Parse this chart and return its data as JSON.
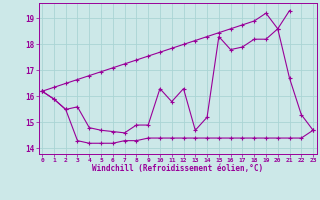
{
  "x": [
    0,
    1,
    2,
    3,
    4,
    5,
    6,
    7,
    8,
    9,
    10,
    11,
    12,
    13,
    14,
    15,
    16,
    17,
    18,
    19,
    20,
    21,
    22,
    23
  ],
  "line_diagonal": [
    16.2,
    16.35,
    16.5,
    16.65,
    16.8,
    16.95,
    17.1,
    17.25,
    17.4,
    17.55,
    17.7,
    17.85,
    18.0,
    18.15,
    18.3,
    18.45,
    18.6,
    18.75,
    18.9,
    19.2,
    18.6,
    16.7,
    15.3,
    14.7
  ],
  "line_wavy": [
    16.2,
    15.9,
    15.5,
    15.6,
    14.8,
    14.7,
    14.65,
    14.6,
    14.9,
    14.9,
    16.3,
    15.8,
    16.3,
    14.7,
    15.2,
    18.3,
    17.8,
    17.9,
    18.2,
    18.2,
    18.6,
    19.3,
    null,
    null
  ],
  "line_flat": [
    16.2,
    15.9,
    15.5,
    14.3,
    14.2,
    14.2,
    14.2,
    14.3,
    14.3,
    14.4,
    14.4,
    14.4,
    14.4,
    14.4,
    14.4,
    14.4,
    14.4,
    14.4,
    14.4,
    14.4,
    14.4,
    14.4,
    14.4,
    14.7
  ],
  "ylim": [
    13.8,
    19.6
  ],
  "yticks": [
    14,
    15,
    16,
    17,
    18,
    19
  ],
  "xticks": [
    0,
    1,
    2,
    3,
    4,
    5,
    6,
    7,
    8,
    9,
    10,
    11,
    12,
    13,
    14,
    15,
    16,
    17,
    18,
    19,
    20,
    21,
    22,
    23
  ],
  "xlabel": "Windchill (Refroidissement éolien,°C)",
  "color": "#990099",
  "bg_color": "#cce8e8",
  "grid_color": "#aad4d4"
}
